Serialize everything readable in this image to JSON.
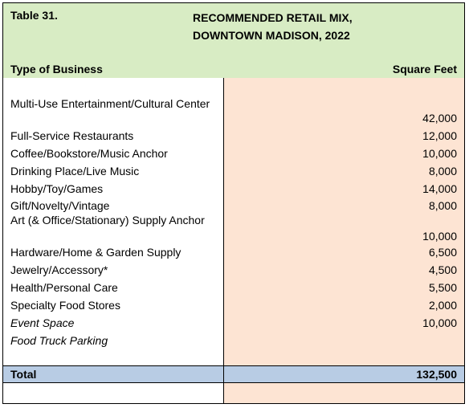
{
  "table": {
    "number": "Table 31.",
    "title_line1": "RECOMMENDED RETAIL MIX,",
    "title_line2": "DOWNTOWN MADISON, 2022",
    "col_type": "Type of Business",
    "col_sqft": "Square Feet",
    "rows": [
      {
        "name": "Multi-Use Entertainment/Cultural Center",
        "value": "42,000"
      },
      {
        "name": "Full-Service Restaurants",
        "value": "12,000"
      },
      {
        "name": "Coffee/Bookstore/Music Anchor",
        "value": "10,000"
      },
      {
        "name": "Drinking Place/Live Music",
        "value": "8,000"
      },
      {
        "name": "Hobby/Toy/Games",
        "value": "14,000"
      },
      {
        "name": "Gift/Novelty/Vintage",
        "value": "8,000"
      },
      {
        "name": "Art (& Office/Stationary) Supply Anchor",
        "value": "10,000"
      },
      {
        "name": "Hardware/Home & Garden Supply",
        "value": "6,500"
      },
      {
        "name": "Jewelry/Accessory*",
        "value": "4,500"
      },
      {
        "name": "Health/Personal Care",
        "value": "5,500"
      },
      {
        "name": "Specialty Food Stores",
        "value": "2,000"
      },
      {
        "name": "Event Space",
        "value": "10,000"
      },
      {
        "name": "Food Truck Parking",
        "value": ""
      }
    ],
    "total_label": "Total",
    "total_value": "132,500"
  }
}
